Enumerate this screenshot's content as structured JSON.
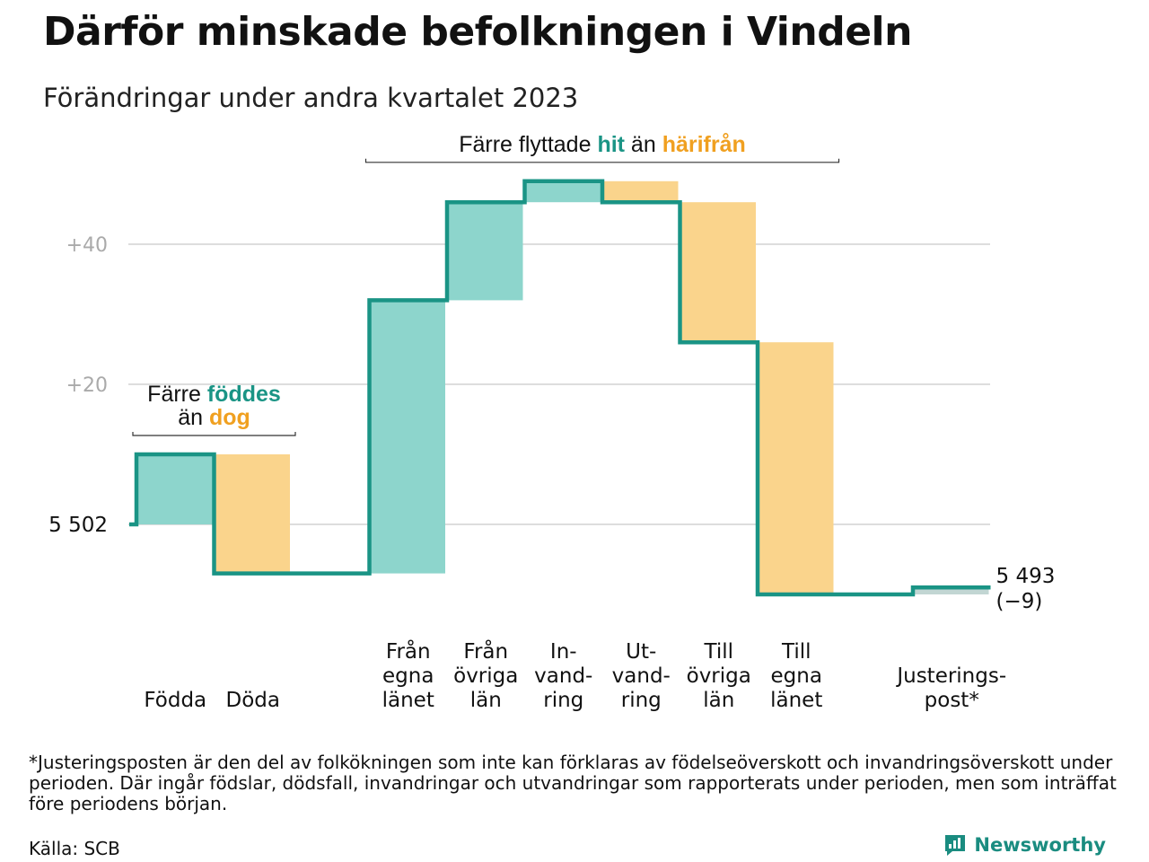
{
  "title": "Därför minskade befolkningen i Vindeln",
  "subtitle": "Förändringar under andra kvartalet 2023",
  "footnote": "*Justeringsposten är den del av folkökningen som inte kan förklaras av födelseöverskott och invandringsöverskott under perioden. Där ingår födslar, dödsfall, invandringar och utvandringar som rapporterats under perioden, men som inträffat före periodens början.",
  "source": "Källa: SCB",
  "brand": {
    "name": "Newsworthy",
    "icon": "newsworthy-logo-icon"
  },
  "colors": {
    "increase": "#8dd5cc",
    "decrease": "#fad48c",
    "line": "#1a9485",
    "adjustment": "#c2d6d3",
    "accent_green": "#1a9485",
    "accent_orange": "#f0a020",
    "grid": "#dddddd"
  },
  "chart_data": {
    "type": "waterfall",
    "start_value": 5502,
    "start_label": "5  502",
    "end_label_value": "5 493",
    "end_label_change": "(−9)",
    "yticks": [
      {
        "value": 20,
        "label": "+20"
      },
      {
        "value": 40,
        "label": "+40"
      }
    ],
    "ylim": [
      -12,
      55
    ],
    "steps": [
      {
        "label": [
          "Födda"
        ],
        "change": 10
      },
      {
        "label": [
          "Döda"
        ],
        "change": -17
      },
      {
        "label": [],
        "change": 0
      },
      {
        "label": [
          "Från",
          "egna",
          "länet"
        ],
        "change": 39
      },
      {
        "label": [
          "Från",
          "övriga",
          "län"
        ],
        "change": 14
      },
      {
        "label": [
          "In-",
          "vand-",
          "ring"
        ],
        "change": 3
      },
      {
        "label": [
          "Ut-",
          "vand-",
          "ring"
        ],
        "change": -3
      },
      {
        "label": [
          "Till",
          "övriga",
          "län"
        ],
        "change": -20
      },
      {
        "label": [
          "Till",
          "egna",
          "länet"
        ],
        "change": -36
      },
      {
        "label": [],
        "change": 0
      },
      {
        "label": [
          "Justerings-",
          "post*"
        ],
        "change": 1
      }
    ],
    "annotations": [
      {
        "parts": [
          [
            {
              "text": "Färre ",
              "style": "plain"
            },
            {
              "text": "föddes",
              "style": "green"
            }
          ],
          [
            {
              "text": "än ",
              "style": "plain"
            },
            {
              "text": "dog",
              "style": "orange"
            }
          ]
        ],
        "from_step": 0,
        "to_step": 1
      },
      {
        "parts": [
          [
            {
              "text": "Färre flyttade ",
              "style": "plain"
            },
            {
              "text": "hit",
              "style": "green"
            },
            {
              "text": "  än ",
              "style": "plain"
            },
            {
              "text": "härifrån",
              "style": "orange"
            }
          ]
        ],
        "from_step": 3,
        "to_step": 8
      }
    ]
  }
}
